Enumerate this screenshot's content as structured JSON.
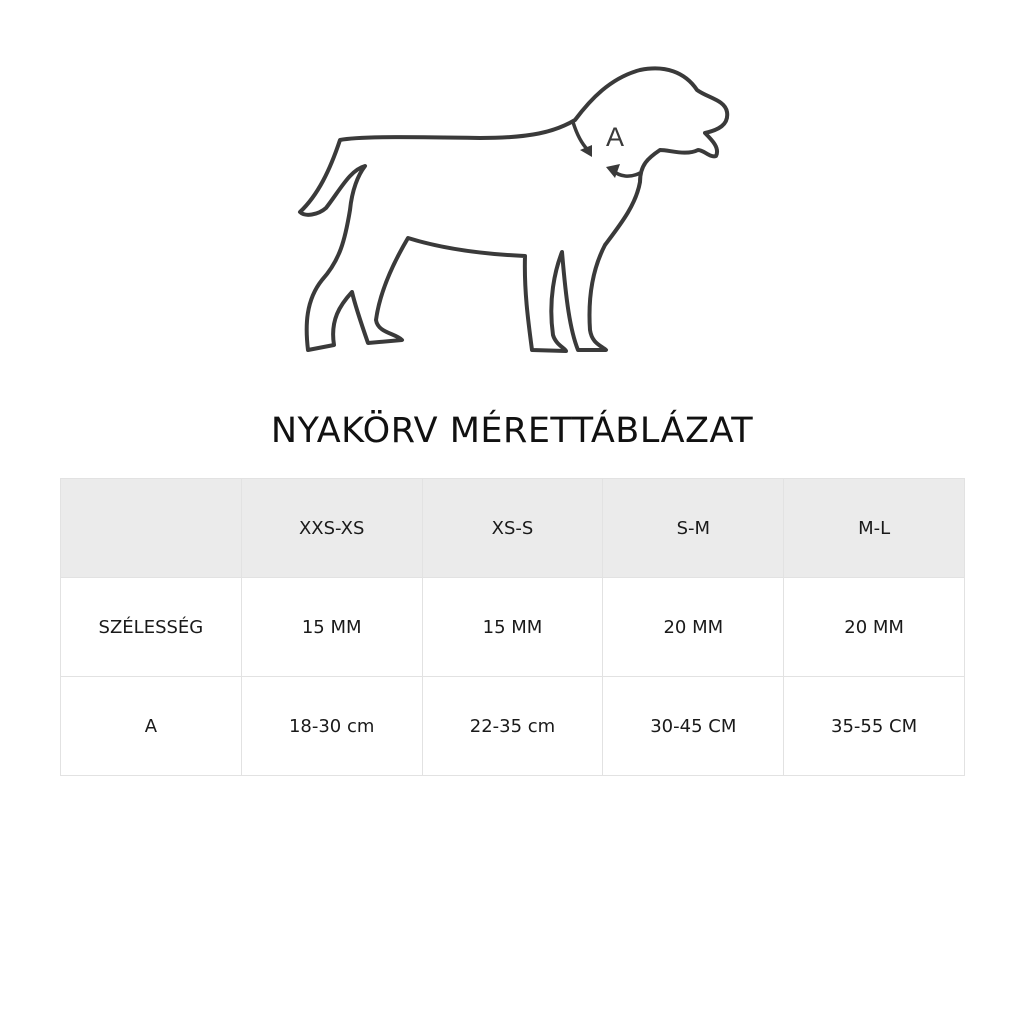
{
  "figure": {
    "label": "A",
    "line_color": "#3a3a3a"
  },
  "title": "NYAKÖRV MÉRETTÁBLÁZAT",
  "table": {
    "header_bg": "#ebebeb",
    "columns": [
      "",
      "XXS-XS",
      "XS-S",
      "S-M",
      "M-L"
    ],
    "rows": [
      {
        "label": "SZÉLESSÉG",
        "values": [
          "15 MM",
          "15 MM",
          "20 MM",
          "20 MM"
        ]
      },
      {
        "label": "A",
        "values": [
          "18-30 cm",
          "22-35 cm",
          "30-45 CM",
          "35-55 CM"
        ]
      }
    ]
  }
}
